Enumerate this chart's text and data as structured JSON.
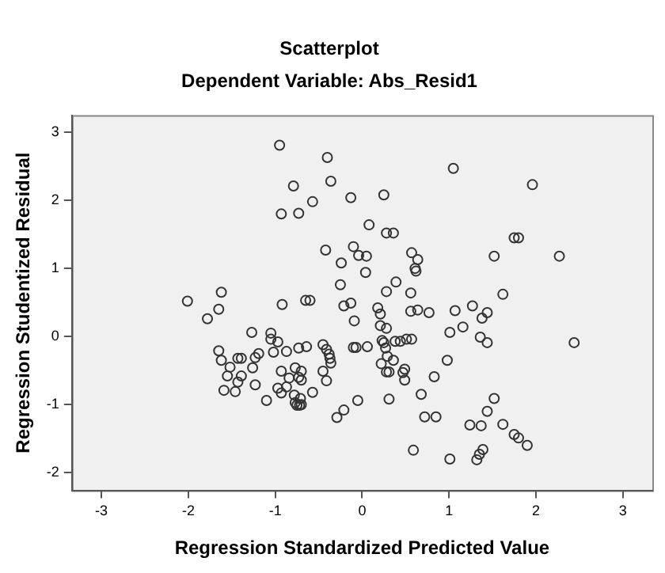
{
  "chart_data": {
    "type": "scatter",
    "title": "Scatterplot",
    "subtitle": "Dependent Variable: Abs_Resid1",
    "xlabel": "Regression Standardized Predicted Value",
    "ylabel": "Regression Studentized Residual",
    "xlim": [
      -3.34,
      3.34
    ],
    "ylim": [
      -2.26,
      3.25
    ],
    "xticks": [
      -3,
      -2,
      -1,
      0,
      1,
      2,
      3
    ],
    "yticks": [
      -2,
      -1,
      0,
      1,
      2,
      3
    ],
    "grid": false,
    "legend": false,
    "marker": "circle",
    "series": [
      {
        "color": "#333333",
        "x": [
          -0.95,
          -0.4,
          -0.79,
          -0.36,
          -0.13,
          -0.93,
          -0.73,
          -0.57,
          -0.1,
          -0.42,
          -0.24,
          -0.25,
          -2.01,
          -1.62,
          -1.65,
          -0.92,
          -0.65,
          -0.6,
          -0.21,
          -0.13,
          1.05,
          1.96,
          0.25,
          0.08,
          0.28,
          0.36,
          1.75,
          1.8,
          -0.04,
          0.05,
          0.57,
          0.64,
          1.52,
          2.27,
          0.04,
          0.61,
          0.62,
          0.39,
          0.28,
          0.56,
          1.62,
          0.18,
          0.21,
          0.56,
          0.64,
          0.77,
          1.07,
          1.27,
          1.44,
          1.38,
          -0.09,
          0.21,
          0.28,
          1.01,
          1.16,
          1.36,
          1.44,
          2.44,
          -0.07,
          0.06,
          0.23,
          0.25,
          0.27,
          0.38,
          0.44,
          0.51,
          0.57,
          0.29,
          0.36,
          0.22,
          0.28,
          0.31,
          0.49,
          0.47,
          0.49,
          0.98,
          0.83,
          0.68,
          1.52,
          0.31,
          -0.05,
          -0.21,
          -0.29,
          1.44,
          0.72,
          0.85,
          1.24,
          1.37,
          1.62,
          1.75,
          1.8,
          1.9,
          0.59,
          1.39,
          1.35,
          1.32,
          1.01,
          -1.78,
          -0.1,
          -1.27,
          -1.05,
          -1.05,
          -0.97,
          -1.65,
          -1.19,
          -1.23,
          -1.02,
          -0.87,
          -0.73,
          -0.64,
          -0.45,
          -0.41,
          -0.38,
          -0.37,
          -0.36,
          -1.62,
          -1.43,
          -1.39,
          -1.52,
          -1.26,
          -1.55,
          -1.39,
          -1.43,
          -0.93,
          -0.77,
          -0.7,
          -0.73,
          -0.7,
          -0.84,
          -0.45,
          -0.41,
          -1.23,
          -1.59,
          -1.46,
          -0.97,
          -0.87,
          -0.93,
          -0.78,
          -0.57,
          -0.71,
          -0.77,
          -0.75,
          -0.72,
          -0.7,
          -1.1
        ],
        "values": [
          2.81,
          2.63,
          2.21,
          2.28,
          2.04,
          1.8,
          1.81,
          1.98,
          1.32,
          1.27,
          1.08,
          0.76,
          0.52,
          0.65,
          0.4,
          0.47,
          0.53,
          0.53,
          0.45,
          0.49,
          2.47,
          2.23,
          2.08,
          1.64,
          1.52,
          1.52,
          1.45,
          1.45,
          1.19,
          1.18,
          1.23,
          1.13,
          1.18,
          1.18,
          0.94,
          1.0,
          0.96,
          0.8,
          0.66,
          0.64,
          0.62,
          0.42,
          0.33,
          0.37,
          0.39,
          0.35,
          0.38,
          0.45,
          0.35,
          0.27,
          0.23,
          0.16,
          0.12,
          0.06,
          0.14,
          -0.01,
          -0.09,
          -0.09,
          -0.16,
          -0.15,
          -0.06,
          -0.09,
          -0.17,
          -0.07,
          -0.07,
          -0.04,
          -0.04,
          -0.29,
          -0.35,
          -0.4,
          -0.52,
          -0.52,
          -0.48,
          -0.53,
          -0.64,
          -0.35,
          -0.59,
          -0.85,
          -0.91,
          -0.92,
          -0.94,
          -1.08,
          -1.19,
          -1.1,
          -1.18,
          -1.18,
          -1.3,
          -1.31,
          -1.29,
          -1.44,
          -1.49,
          -1.6,
          -1.67,
          -1.66,
          -1.73,
          -1.81,
          -1.8,
          0.26,
          -0.16,
          0.06,
          0.05,
          -0.04,
          -0.08,
          -0.21,
          -0.25,
          -0.31,
          -0.23,
          -0.22,
          -0.17,
          -0.15,
          -0.12,
          -0.19,
          -0.26,
          -0.32,
          -0.39,
          -0.35,
          -0.32,
          -0.32,
          -0.45,
          -0.46,
          -0.58,
          -0.58,
          -0.67,
          -0.51,
          -0.46,
          -0.51,
          -0.6,
          -0.64,
          -0.61,
          -0.51,
          -0.65,
          -0.71,
          -0.79,
          -0.81,
          -0.76,
          -0.74,
          -0.83,
          -0.86,
          -0.82,
          -0.91,
          -0.97,
          -1.01,
          -1.01,
          -1.0,
          -0.94
        ]
      }
    ]
  }
}
